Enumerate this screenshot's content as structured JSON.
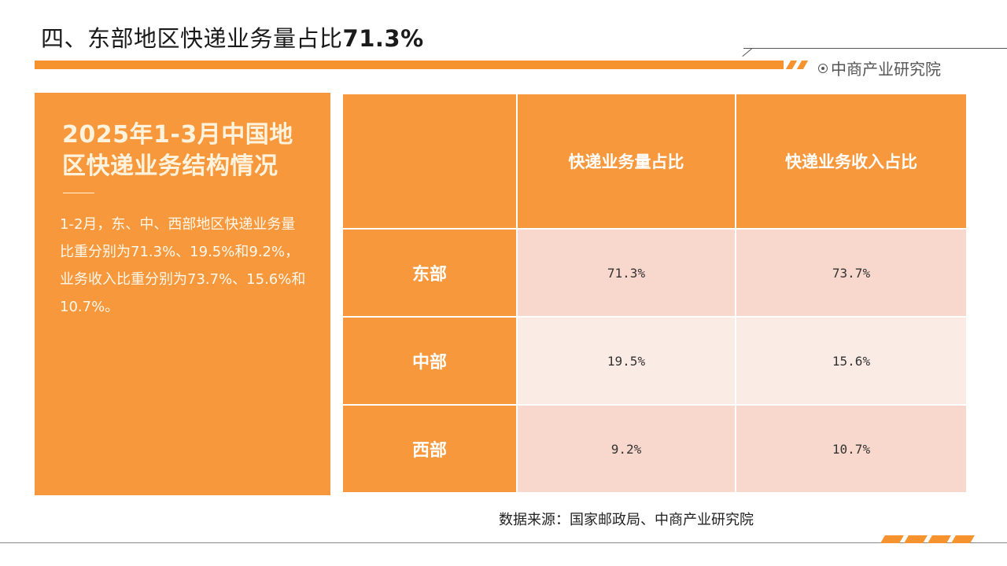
{
  "header": {
    "title_main": "四、东部地区快递业务量占比",
    "title_pct": "71.3%",
    "brand": "中商产业研究院",
    "accent_color": "#f7932e"
  },
  "left_panel": {
    "title": "2025年1-3月中国地区快递业务结构情况",
    "body": "1-2月，东、中、西部地区快递业务量比重分别为71.3%、19.5%和9.2%，业务收入比重分别为73.7%、15.6%和10.7%。"
  },
  "table": {
    "headers": [
      "",
      "快递业务量占比",
      "快递业务收入占比"
    ],
    "rows": [
      {
        "region": "东部",
        "volume_share": "71.3%",
        "revenue_share": "73.7%"
      },
      {
        "region": "中部",
        "volume_share": "19.5%",
        "revenue_share": "15.6%"
      },
      {
        "region": "西部",
        "volume_share": "9.2%",
        "revenue_share": "10.7%"
      }
    ]
  },
  "footer": {
    "source": "数据来源：国家邮政局、中商产业研究院"
  }
}
